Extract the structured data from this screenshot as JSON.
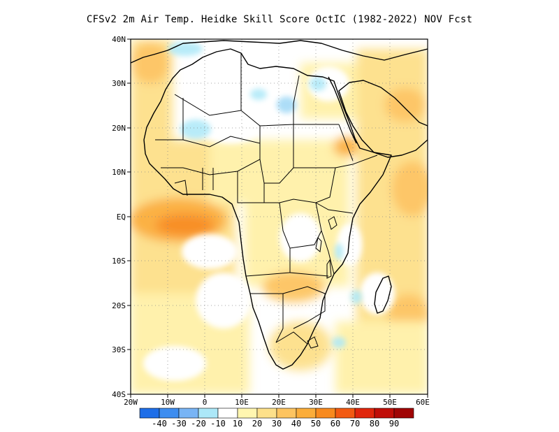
{
  "title": "CFSv2  2m Air Temp. Heidke Skill Score OctIC (1982-2022) NOV Fcst",
  "map": {
    "lat_ticks": [
      "40N",
      "30N",
      "20N",
      "10N",
      "EQ",
      "10S",
      "20S",
      "30S",
      "40S"
    ],
    "lon_ticks": [
      "20W",
      "10W",
      "0",
      "10E",
      "20E",
      "30E",
      "40E",
      "50E",
      "60E"
    ],
    "lon_range": [
      -20,
      60
    ],
    "lat_range": [
      -40,
      40
    ],
    "gridlines": "dotted"
  },
  "colorbar": {
    "labels": [
      "-40",
      "-30",
      "-20",
      "-10",
      "10",
      "20",
      "30",
      "40",
      "50",
      "60",
      "70",
      "80",
      "90"
    ],
    "colors": [
      "#1e6ee8",
      "#3d8df0",
      "#78b4f5",
      "#ace8f8",
      "#ffffff",
      "#fff6b0",
      "#fde08a",
      "#fdc460",
      "#fbad3a",
      "#f88a1e",
      "#f25a12",
      "#e0260c",
      "#c00e08",
      "#a00505"
    ]
  }
}
